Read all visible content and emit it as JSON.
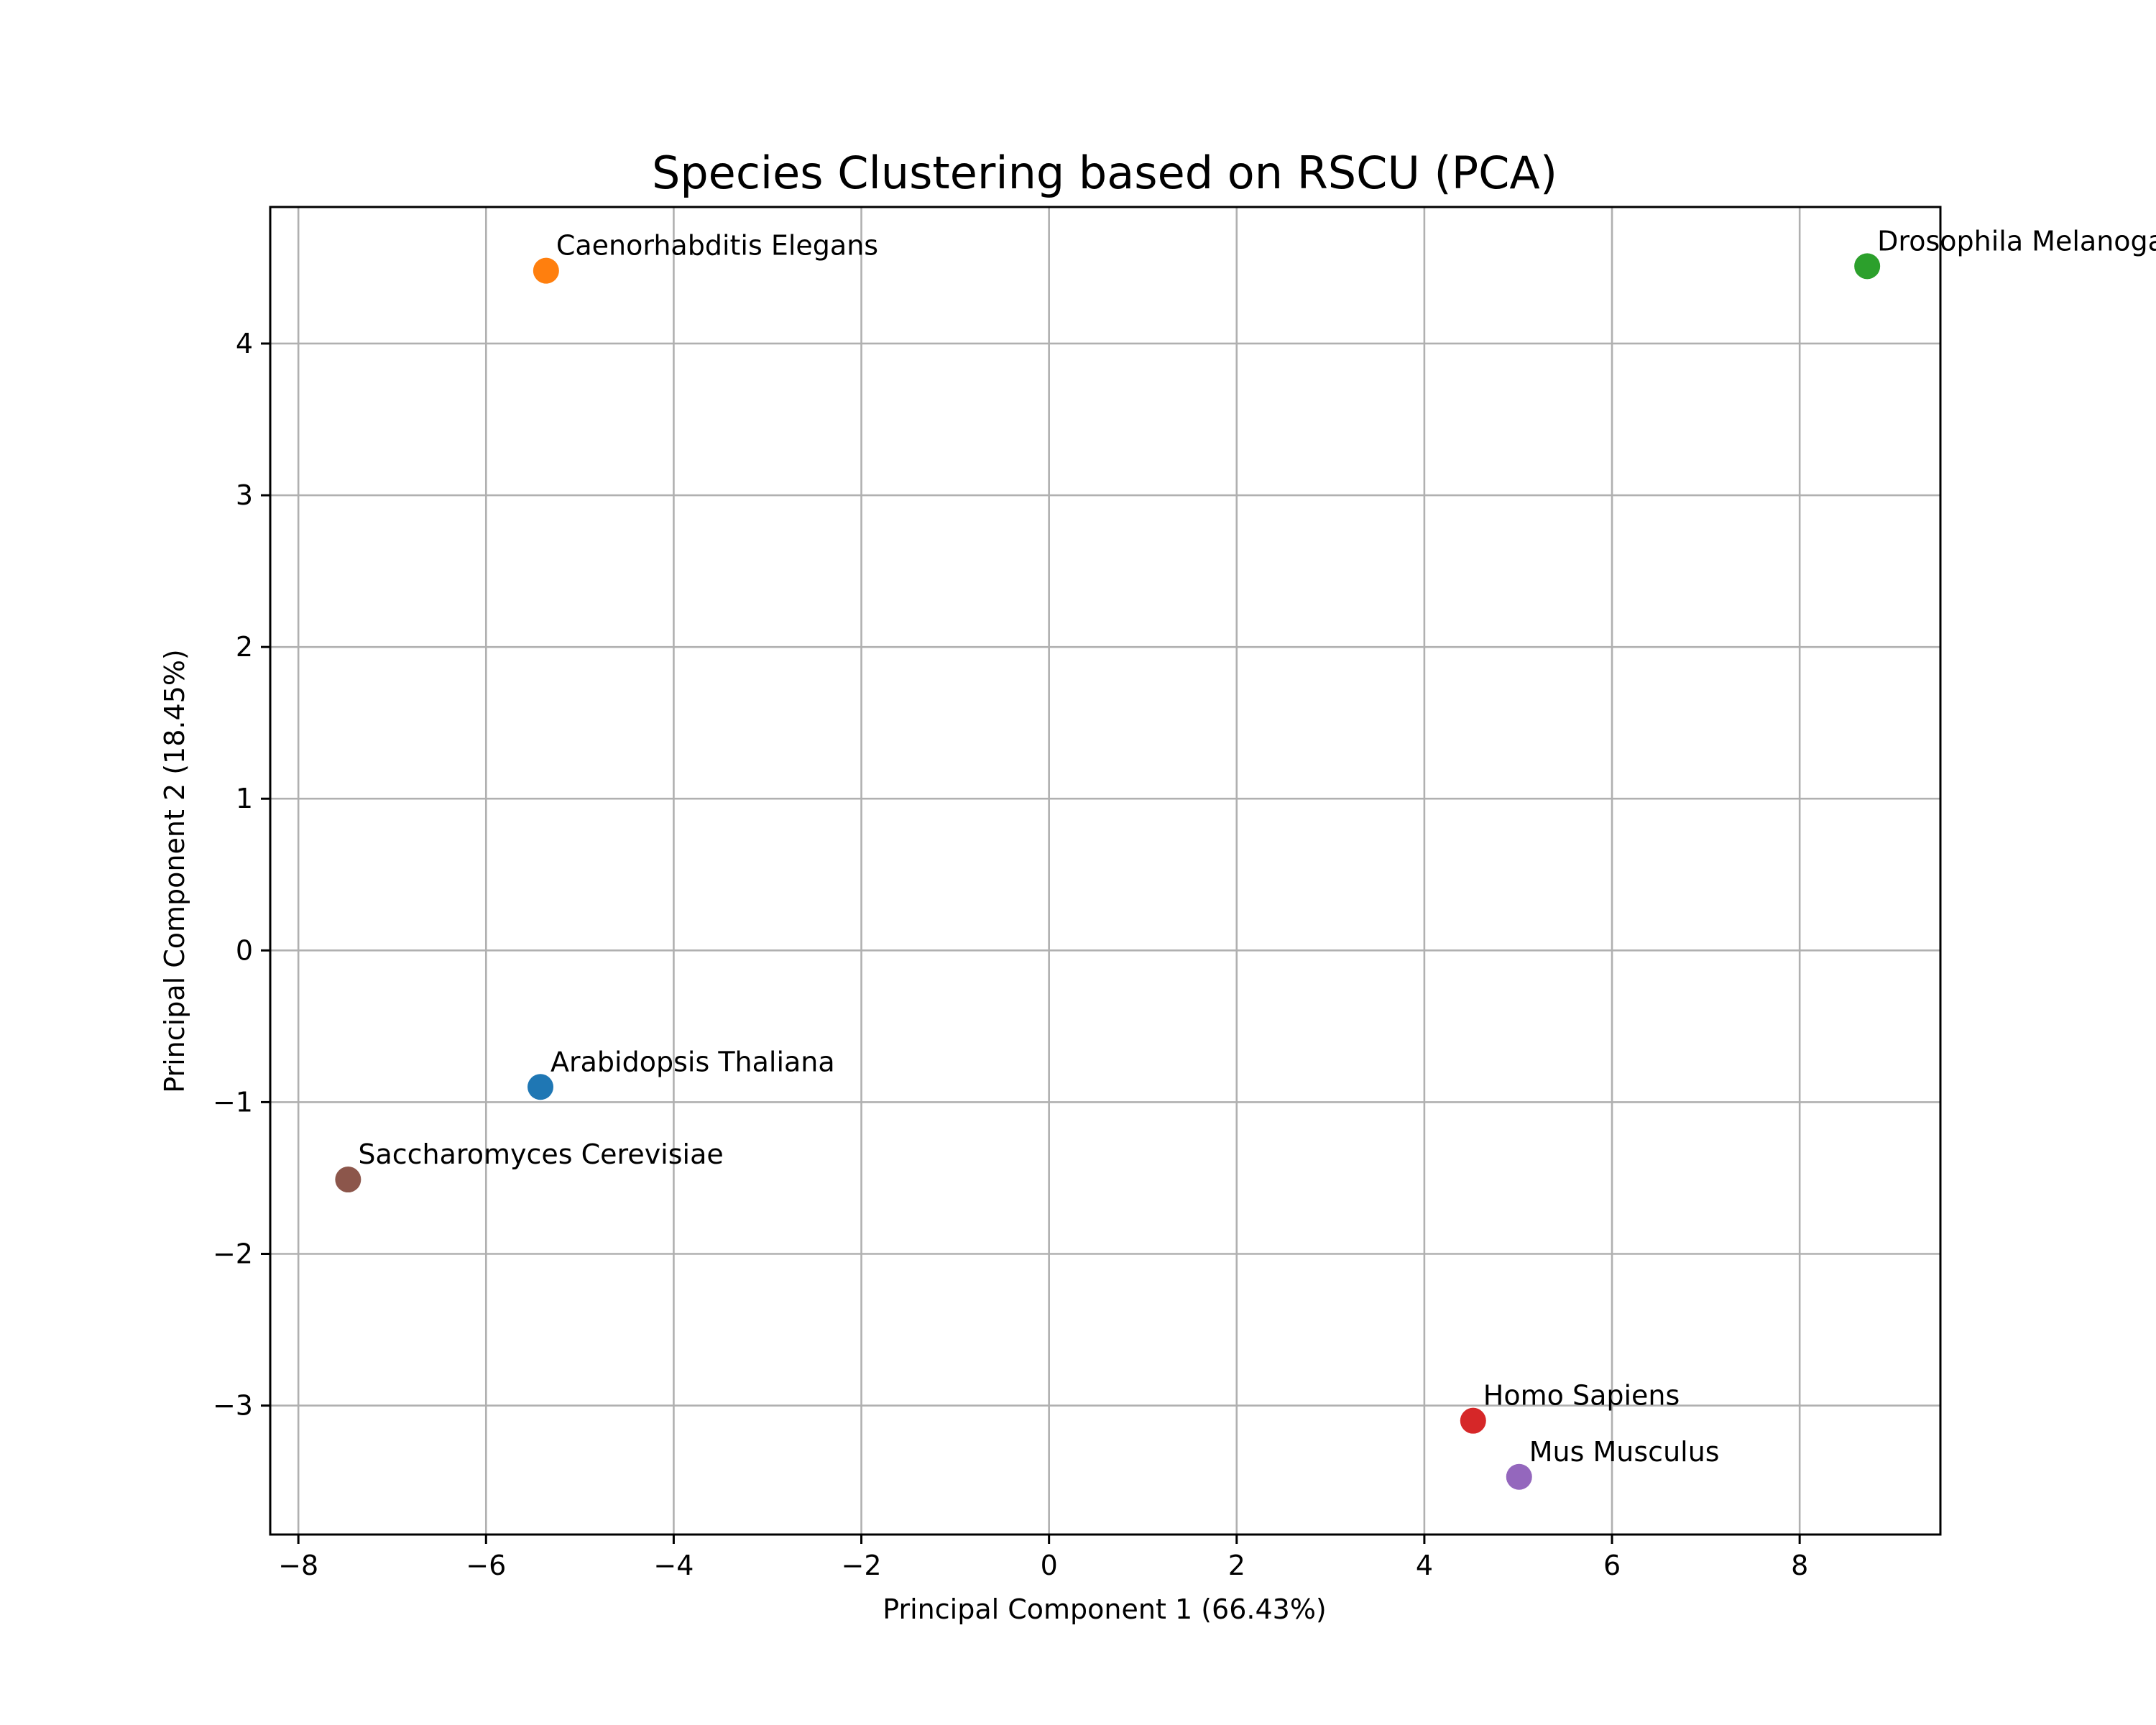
{
  "chart_data": {
    "type": "scatter",
    "title": "Species Clustering based on RSCU (PCA)",
    "xlabel": "Principal Component 1 (66.43%)",
    "ylabel": "Principal Component 2 (18.45%)",
    "xlim": [
      -8.3,
      9.5
    ],
    "ylim": [
      -3.85,
      4.9
    ],
    "xticks": [
      -8,
      -6,
      -4,
      -2,
      0,
      2,
      4,
      6,
      8
    ],
    "yticks": [
      -3,
      -2,
      -1,
      0,
      1,
      2,
      3,
      4
    ],
    "xtick_labels": [
      "−8",
      "−6",
      "−4",
      "−2",
      "0",
      "2",
      "4",
      "6",
      "8"
    ],
    "ytick_labels": [
      "−3",
      "−2",
      "−1",
      "0",
      "1",
      "2",
      "3",
      "4"
    ],
    "grid": true,
    "legend": "none",
    "points": [
      {
        "label": "Arabidopsis Thaliana",
        "x": -5.42,
        "y": -0.9,
        "color": "#1f77b4"
      },
      {
        "label": "Caenorhabditis Elegans",
        "x": -5.36,
        "y": 4.48,
        "color": "#ff7f0e"
      },
      {
        "label": "Drosophila Melanogaster",
        "x": 8.72,
        "y": 4.51,
        "color": "#2ca02c"
      },
      {
        "label": "Homo Sapiens",
        "x": 4.52,
        "y": -3.1,
        "color": "#d62728"
      },
      {
        "label": "Mus Musculus",
        "x": 5.01,
        "y": -3.47,
        "color": "#9467bd"
      },
      {
        "label": "Saccharomyces Cerevisiae",
        "x": -7.47,
        "y": -1.51,
        "color": "#8c564b"
      }
    ]
  }
}
